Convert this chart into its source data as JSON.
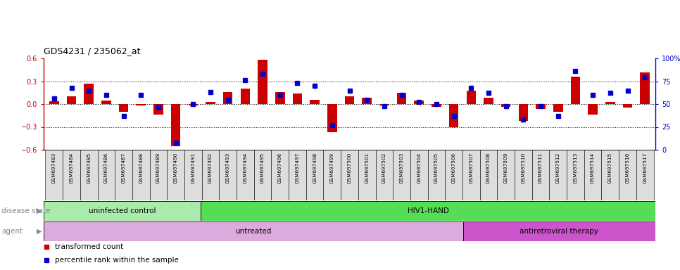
{
  "title": "GDS4231 / 235062_at",
  "samples": [
    "GSM697483",
    "GSM697484",
    "GSM697485",
    "GSM697486",
    "GSM697487",
    "GSM697488",
    "GSM697489",
    "GSM697490",
    "GSM697491",
    "GSM697492",
    "GSM697493",
    "GSM697494",
    "GSM697495",
    "GSM697496",
    "GSM697497",
    "GSM697498",
    "GSM697499",
    "GSM697500",
    "GSM697501",
    "GSM697502",
    "GSM697503",
    "GSM697504",
    "GSM697505",
    "GSM697506",
    "GSM697507",
    "GSM697508",
    "GSM697509",
    "GSM697510",
    "GSM697511",
    "GSM697512",
    "GSM697513",
    "GSM697514",
    "GSM697515",
    "GSM697516",
    "GSM697517"
  ],
  "bar_values": [
    0.04,
    0.1,
    0.27,
    0.05,
    -0.1,
    -0.02,
    -0.14,
    -0.55,
    -0.02,
    0.03,
    0.16,
    0.2,
    0.58,
    0.16,
    0.14,
    0.06,
    -0.37,
    0.1,
    0.08,
    -0.02,
    0.15,
    0.05,
    -0.04,
    -0.3,
    0.18,
    0.08,
    -0.04,
    -0.22,
    -0.06,
    -0.1,
    0.36,
    -0.14,
    0.03,
    -0.05,
    0.42
  ],
  "dot_values_pct": [
    56,
    68,
    65,
    60,
    37,
    60,
    47,
    8,
    50,
    63,
    55,
    76,
    83,
    60,
    73,
    70,
    27,
    65,
    55,
    48,
    60,
    52,
    50,
    37,
    68,
    62,
    48,
    33,
    48,
    37,
    86,
    60,
    62,
    65,
    79
  ],
  "ylim_left": [
    -0.6,
    0.6
  ],
  "ylim_right": [
    0,
    100
  ],
  "left_ticks": [
    -0.6,
    -0.3,
    0.0,
    0.3,
    0.6
  ],
  "right_ticks": [
    0,
    25,
    50,
    75,
    100
  ],
  "right_tick_labels": [
    "0",
    "25",
    "50",
    "75",
    "100%"
  ],
  "dotted_lines": [
    0.3,
    0.0,
    -0.3
  ],
  "bar_color": "#CC0000",
  "dot_color": "#0000CC",
  "xticklabel_bg": "#DDDDDD",
  "disease_state_groups": [
    {
      "label": "uninfected control",
      "start": 0,
      "end": 9,
      "color": "#AAEAAA"
    },
    {
      "label": "HIV1-HAND",
      "start": 9,
      "end": 35,
      "color": "#55DD55"
    }
  ],
  "agent_groups": [
    {
      "label": "untreated",
      "start": 0,
      "end": 24,
      "color": "#DDAADD"
    },
    {
      "label": "antiretroviral therapy",
      "start": 24,
      "end": 35,
      "color": "#CC55CC"
    }
  ],
  "disease_state_label": "disease state",
  "agent_label": "agent",
  "legend_items": [
    {
      "label": "transformed count",
      "color": "#CC0000"
    },
    {
      "label": "percentile rank within the sample",
      "color": "#0000CC"
    }
  ],
  "title_fontsize": 9,
  "tick_fontsize": 7,
  "xticklabel_fontsize": 5.2,
  "label_row_fontsize": 7.5,
  "legend_fontsize": 7.5,
  "background_color": "#FFFFFF"
}
